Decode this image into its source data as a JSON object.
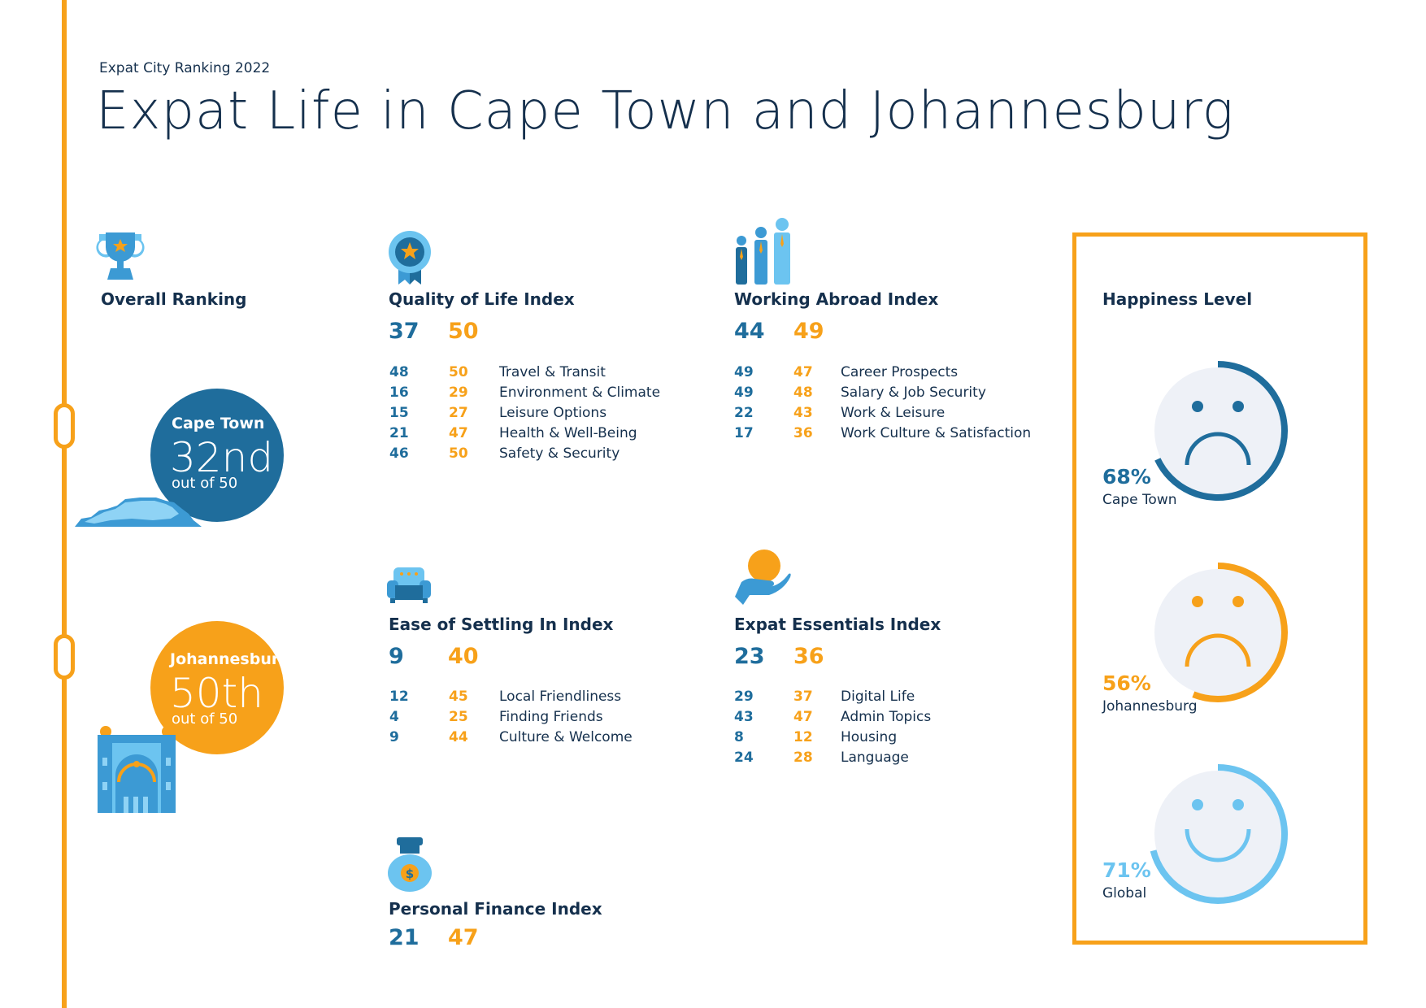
{
  "header": {
    "subtitle": "Expat City Ranking 2022",
    "title": "Expat Life in Cape Town and Johannesburg"
  },
  "overall": {
    "label": "Overall Ranking",
    "cape_town": {
      "city": "Cape Town",
      "rank": "32nd",
      "out_of": "out of 50"
    },
    "johannesburg": {
      "city": "Johannesburg",
      "rank": "50th",
      "out_of": "out of 50"
    }
  },
  "quality_of_life": {
    "title": "Quality of Life Index",
    "cape_town": "37",
    "johannesburg": "50",
    "rows": [
      {
        "ct": "48",
        "jb": "50",
        "label": "Travel & Transit"
      },
      {
        "ct": "16",
        "jb": "29",
        "label": "Environment & Climate"
      },
      {
        "ct": "15",
        "jb": "27",
        "label": "Leisure Options"
      },
      {
        "ct": "21",
        "jb": "47",
        "label": "Health & Well-Being"
      },
      {
        "ct": "46",
        "jb": "50",
        "label": "Safety & Security"
      }
    ]
  },
  "working_abroad": {
    "title": "Working Abroad Index",
    "cape_town": "44",
    "johannesburg": "49",
    "rows": [
      {
        "ct": "49",
        "jb": "47",
        "label": "Career Prospects"
      },
      {
        "ct": "49",
        "jb": "48",
        "label": "Salary & Job Security"
      },
      {
        "ct": "22",
        "jb": "43",
        "label": "Work & Leisure"
      },
      {
        "ct": "17",
        "jb": "36",
        "label": "Work Culture & Satisfaction"
      }
    ]
  },
  "ease_of_settling": {
    "title": "Ease of Settling In Index",
    "cape_town": "9",
    "johannesburg": "40",
    "rows": [
      {
        "ct": "12",
        "jb": "45",
        "label": "Local Friendliness"
      },
      {
        "ct": "4",
        "jb": "25",
        "label": "Finding Friends"
      },
      {
        "ct": "9",
        "jb": "44",
        "label": "Culture & Welcome"
      }
    ]
  },
  "expat_essentials": {
    "title": "Expat Essentials Index",
    "cape_town": "23",
    "johannesburg": "36",
    "rows": [
      {
        "ct": "29",
        "jb": "37",
        "label": "Digital Life"
      },
      {
        "ct": "43",
        "jb": "47",
        "label": "Admin Topics"
      },
      {
        "ct": "8",
        "jb": "12",
        "label": "Housing"
      },
      {
        "ct": "24",
        "jb": "28",
        "label": "Language"
      }
    ]
  },
  "personal_finance": {
    "title": "Personal Finance Index",
    "cape_town": "21",
    "johannesburg": "47"
  },
  "happiness": {
    "title": "Happiness Level",
    "items": [
      {
        "percent": "68%",
        "value": 68,
        "label": "Cape Town",
        "color": "#1f6d9c",
        "mood": "sad"
      },
      {
        "percent": "56%",
        "value": 56,
        "label": "Johannesburg",
        "color": "#f7a11a",
        "mood": "sad"
      },
      {
        "percent": "71%",
        "value": 71,
        "label": "Global",
        "color": "#6cc4f0",
        "mood": "happy"
      }
    ]
  },
  "colors": {
    "cape_town": "#1f6d9c",
    "johannesburg": "#f7a11a",
    "global": "#6cc4f0",
    "text": "#15304d"
  }
}
